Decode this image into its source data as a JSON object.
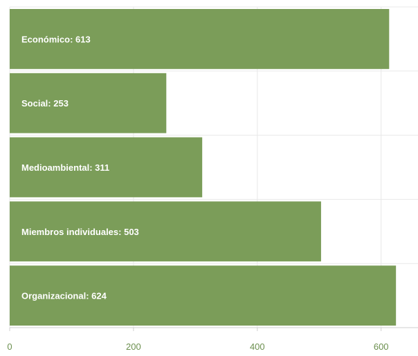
{
  "colors": {
    "bar": "#7b9d59",
    "grid": "#e8e8e8",
    "axis": "#cfcfcf",
    "tick": "#6b8f4e",
    "label": "#ffffff"
  },
  "chart_data": {
    "type": "bar",
    "orientation": "horizontal",
    "categories": [
      "Económico",
      "Social",
      "Medioambiental",
      "Miembros individuales",
      "Organizacional"
    ],
    "values": [
      613,
      253,
      311,
      503,
      624
    ],
    "data_labels": [
      "Económico: 613",
      "Social: 253",
      "Medioambiental: 311",
      "Miembros individuales: 503",
      "Organizacional: 624"
    ],
    "xticks": [
      0,
      200,
      400,
      600
    ],
    "xtick_labels": [
      "0",
      "200",
      "400",
      "600"
    ],
    "xlim": [
      0,
      660
    ],
    "grid": true,
    "legend": "none"
  }
}
